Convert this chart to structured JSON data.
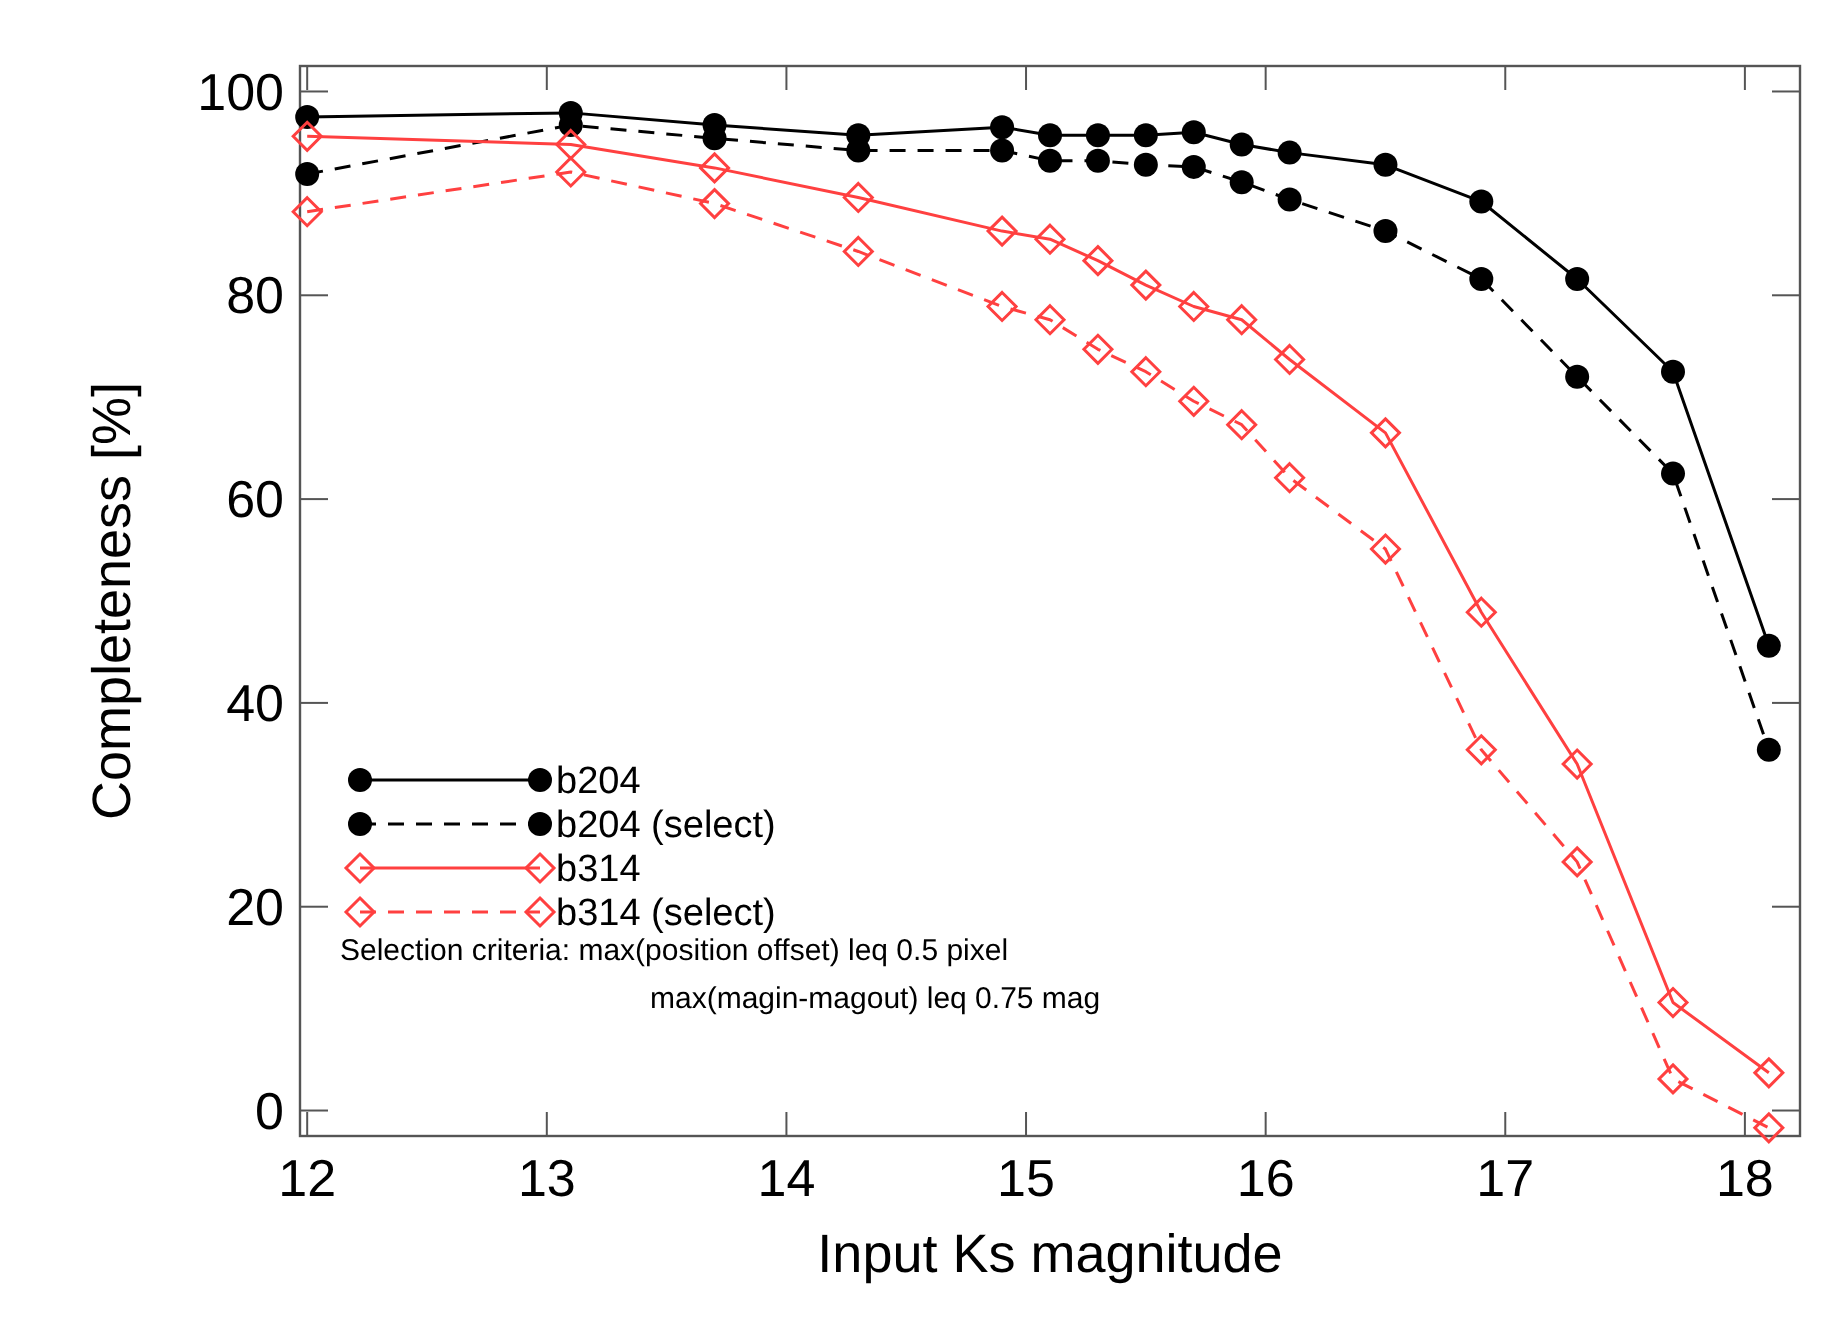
{
  "chart_data": {
    "type": "line",
    "xlabel": "Input Ks magnitude",
    "ylabel": "Completeness [%]",
    "x": [
      12.0,
      13.1,
      13.7,
      14.3,
      14.9,
      15.1,
      15.3,
      15.5,
      15.7,
      15.9,
      16.1,
      16.5,
      16.9,
      17.3,
      17.7,
      18.1
    ],
    "xlim": [
      11.97,
      18.23
    ],
    "ylim": [
      -2.5,
      102.5
    ],
    "xticks": [
      12,
      13,
      14,
      15,
      16,
      17,
      18
    ],
    "yticks": [
      0,
      20,
      40,
      60,
      80,
      100
    ],
    "grid": false,
    "legend": "bottom left",
    "series": [
      {
        "name": "b204",
        "color": "#000000",
        "marker": "circle",
        "line_style": "solid",
        "values": [
          97.5,
          97.9,
          96.7,
          95.7,
          96.5,
          95.7,
          95.7,
          95.7,
          96.0,
          94.8,
          94.0,
          92.8,
          89.2,
          81.6,
          72.5,
          45.6
        ]
      },
      {
        "name": "b204 (select)",
        "color": "#000000",
        "marker": "circle",
        "line_style": "dashed",
        "values": [
          91.9,
          96.7,
          95.4,
          94.2,
          94.2,
          93.2,
          93.2,
          92.8,
          92.6,
          91.1,
          89.4,
          86.3,
          81.6,
          72.0,
          62.5,
          35.4
        ]
      },
      {
        "name": "b314",
        "color": "#ff4040",
        "marker": "diamond",
        "line_style": "solid",
        "values": [
          95.6,
          94.8,
          92.5,
          89.6,
          86.3,
          85.5,
          83.4,
          81.0,
          78.9,
          77.6,
          73.7,
          66.5,
          48.9,
          34.0,
          10.6,
          3.7
        ]
      },
      {
        "name": "b314 (select)",
        "color": "#ff4040",
        "marker": "diamond",
        "line_style": "dashed",
        "values": [
          88.2,
          92.1,
          89.0,
          84.3,
          78.9,
          77.6,
          74.7,
          72.5,
          69.6,
          67.3,
          62.1,
          55.1,
          35.4,
          24.4,
          3.1,
          -1.7
        ]
      }
    ],
    "annotations": [
      "Selection criteria: max(position offset) leq 0.5 pixel",
      "max(magin-magout) leq 0.75 mag"
    ]
  }
}
